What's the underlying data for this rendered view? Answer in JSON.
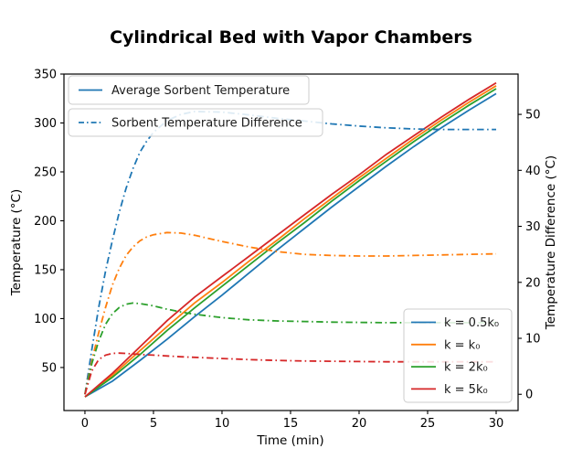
{
  "title": "Cylindrical Bed with Vapor Chambers",
  "axes": {
    "x": {
      "label": "Time (min)",
      "ticks": [
        "0",
        "5",
        "10",
        "15",
        "20",
        "25",
        "30"
      ],
      "tick_values": [
        0,
        5,
        10,
        15,
        20,
        25,
        30
      ],
      "range": [
        -1.53,
        31.6
      ]
    },
    "y_left": {
      "label": "Temperature (°C)",
      "ticks": [
        "50",
        "100",
        "150",
        "200",
        "250",
        "300",
        "350"
      ],
      "tick_values": [
        50,
        100,
        150,
        200,
        250,
        300,
        350
      ],
      "range": [
        6,
        350
      ]
    },
    "y_right": {
      "label": "Temperature Difference (°C)",
      "ticks": [
        "0",
        "10",
        "20",
        "30",
        "40",
        "50"
      ],
      "tick_values": [
        0,
        10,
        20,
        30,
        40,
        50
      ],
      "range": [
        -2.9,
        57.2
      ]
    }
  },
  "legend_top": [
    {
      "label": "Average Sorbent Temperature",
      "style": "solid",
      "color": "#1f77b4"
    },
    {
      "label": "Sorbent Temperature Difference",
      "style": "dashdot",
      "color": "#1f77b4"
    }
  ],
  "legend_bottom": [
    {
      "label": "k = 0.5k₀",
      "style": "solid",
      "color": "#1f77b4"
    },
    {
      "label": "k = k₀",
      "style": "solid",
      "color": "#ff7f0e"
    },
    {
      "label": "k = 2k₀",
      "style": "solid",
      "color": "#2ca02c"
    },
    {
      "label": "k = 5k₀",
      "style": "solid",
      "color": "#d62728"
    }
  ],
  "colors": {
    "k_half": "#1f77b4",
    "k_1": "#ff7f0e",
    "k_2": "#2ca02c",
    "k_5": "#d62728",
    "spine": "#000000",
    "legend_border": "#cccccc"
  },
  "chart_data": {
    "type": "line",
    "title": "Cylindrical Bed with Vapor Chambers",
    "xlabel": "Time (min)",
    "ylabel_left": "Temperature (°C)",
    "ylabel_right": "Temperature Difference (°C)",
    "xlim": [
      -1.53,
      31.6
    ],
    "ylim_left": [
      6,
      350
    ],
    "ylim_right": [
      -2.9,
      57.2
    ],
    "grid": false,
    "x_solid": [
      0,
      2,
      4,
      6,
      8,
      10,
      12,
      14,
      16,
      18,
      20,
      22,
      24,
      26,
      28,
      30
    ],
    "x_dash": [
      0,
      0.5,
      1,
      1.5,
      2,
      2.5,
      3,
      3.5,
      4,
      4.5,
      5,
      6,
      7,
      8,
      10,
      12,
      14,
      16,
      18,
      20,
      22,
      24,
      26,
      28,
      30
    ],
    "series": [
      {
        "name": "avg-temp-k-0.5k0",
        "group": "solid",
        "axis": "left",
        "color": "#1f77b4",
        "y": [
          20,
          36,
          57,
          79,
          102,
          124,
          147,
          170,
          192,
          214,
          235,
          256,
          276,
          295,
          313,
          330
        ]
      },
      {
        "name": "avg-temp-k-k0",
        "group": "solid",
        "axis": "left",
        "color": "#ff7f0e",
        "y": [
          20,
          42,
          67,
          92,
          116,
          137,
          159,
          180,
          202,
          223,
          244,
          264,
          284,
          303,
          321,
          338
        ]
      },
      {
        "name": "avg-temp-k-2k0",
        "group": "solid",
        "axis": "left",
        "color": "#2ca02c",
        "y": [
          20,
          40,
          63,
          88,
          111,
          133,
          155,
          177,
          198,
          220,
          241,
          261,
          281,
          300,
          318,
          335
        ]
      },
      {
        "name": "avg-temp-k-5k0",
        "group": "solid",
        "axis": "left",
        "color": "#d62728",
        "y": [
          20,
          44,
          71,
          98,
          122,
          143,
          164,
          185,
          206,
          227,
          247,
          268,
          287,
          306,
          324,
          341
        ]
      },
      {
        "name": "temp-diff-k-0.5k0",
        "group": "dash",
        "axis": "right",
        "color": "#1f77b4",
        "y": [
          0,
          8,
          15.5,
          22,
          27.5,
          32.5,
          36.8,
          40.3,
          43.2,
          45.2,
          46.8,
          48.9,
          50,
          50.5,
          50.4,
          49.9,
          49.3,
          48.8,
          48.3,
          47.9,
          47.6,
          47.4,
          47.3,
          47.3,
          47.3
        ]
      },
      {
        "name": "temp-diff-k-k0",
        "group": "dash",
        "axis": "right",
        "color": "#ff7f0e",
        "y": [
          0,
          6,
          11,
          15.5,
          19.5,
          22.5,
          24.8,
          26.3,
          27.4,
          28.1,
          28.5,
          28.9,
          28.8,
          28.4,
          27.3,
          26.3,
          25.5,
          25,
          24.8,
          24.7,
          24.7,
          24.8,
          24.9,
          25,
          25.1
        ]
      },
      {
        "name": "temp-diff-k-2k0",
        "group": "dash",
        "axis": "right",
        "color": "#2ca02c",
        "y": [
          0,
          5.5,
          9.5,
          12.5,
          14.4,
          15.5,
          16.1,
          16.3,
          16.2,
          16,
          15.8,
          15.2,
          14.7,
          14.3,
          13.7,
          13.3,
          13.1,
          13,
          12.9,
          12.85,
          12.8,
          12.8,
          12.8,
          12.8,
          12.8
        ]
      },
      {
        "name": "temp-diff-k-5k0",
        "group": "dash",
        "axis": "right",
        "color": "#d62728",
        "y": [
          0,
          4.2,
          6.2,
          7,
          7.3,
          7.35,
          7.3,
          7.2,
          7.15,
          7.05,
          7,
          6.85,
          6.7,
          6.6,
          6.4,
          6.2,
          6.05,
          5.95,
          5.9,
          5.85,
          5.8,
          5.8,
          5.8,
          5.8,
          5.8
        ]
      }
    ]
  }
}
